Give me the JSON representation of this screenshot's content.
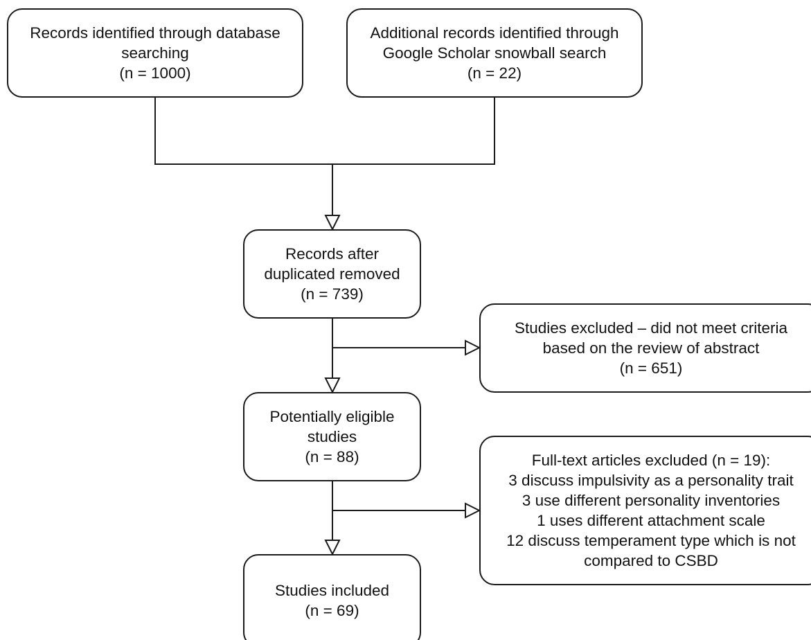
{
  "boxes": {
    "identified_database": {
      "lines": [
        "Records identified through database",
        "searching",
        "(n = 1000)"
      ]
    },
    "identified_scholar": {
      "lines": [
        "Additional records identified through",
        "Google Scholar snowball search",
        "(n = 22)"
      ]
    },
    "after_duplicates": {
      "lines": [
        "Records after",
        "duplicated removed",
        "(n = 739)"
      ]
    },
    "excluded_abstract": {
      "lines": [
        "Studies excluded – did not meet criteria",
        "based on the review of abstract",
        "(n = 651)"
      ]
    },
    "potentially_eligible": {
      "lines": [
        "Potentially eligible",
        "studies",
        "(n = 88)"
      ]
    },
    "excluded_fulltext": {
      "lines": [
        "Full-text articles excluded (n = 19):",
        "3 discuss impulsivity as a personality trait",
        "3 use different personality inventories",
        "1 uses different attachment scale",
        "12 discuss temperament type which is not",
        "compared to CSBD"
      ]
    },
    "included": {
      "lines": [
        "Studies included",
        "(n = 69)"
      ]
    }
  },
  "style": {
    "stroke_color": "#1a1a1a",
    "box_fill": "#ffffff"
  }
}
